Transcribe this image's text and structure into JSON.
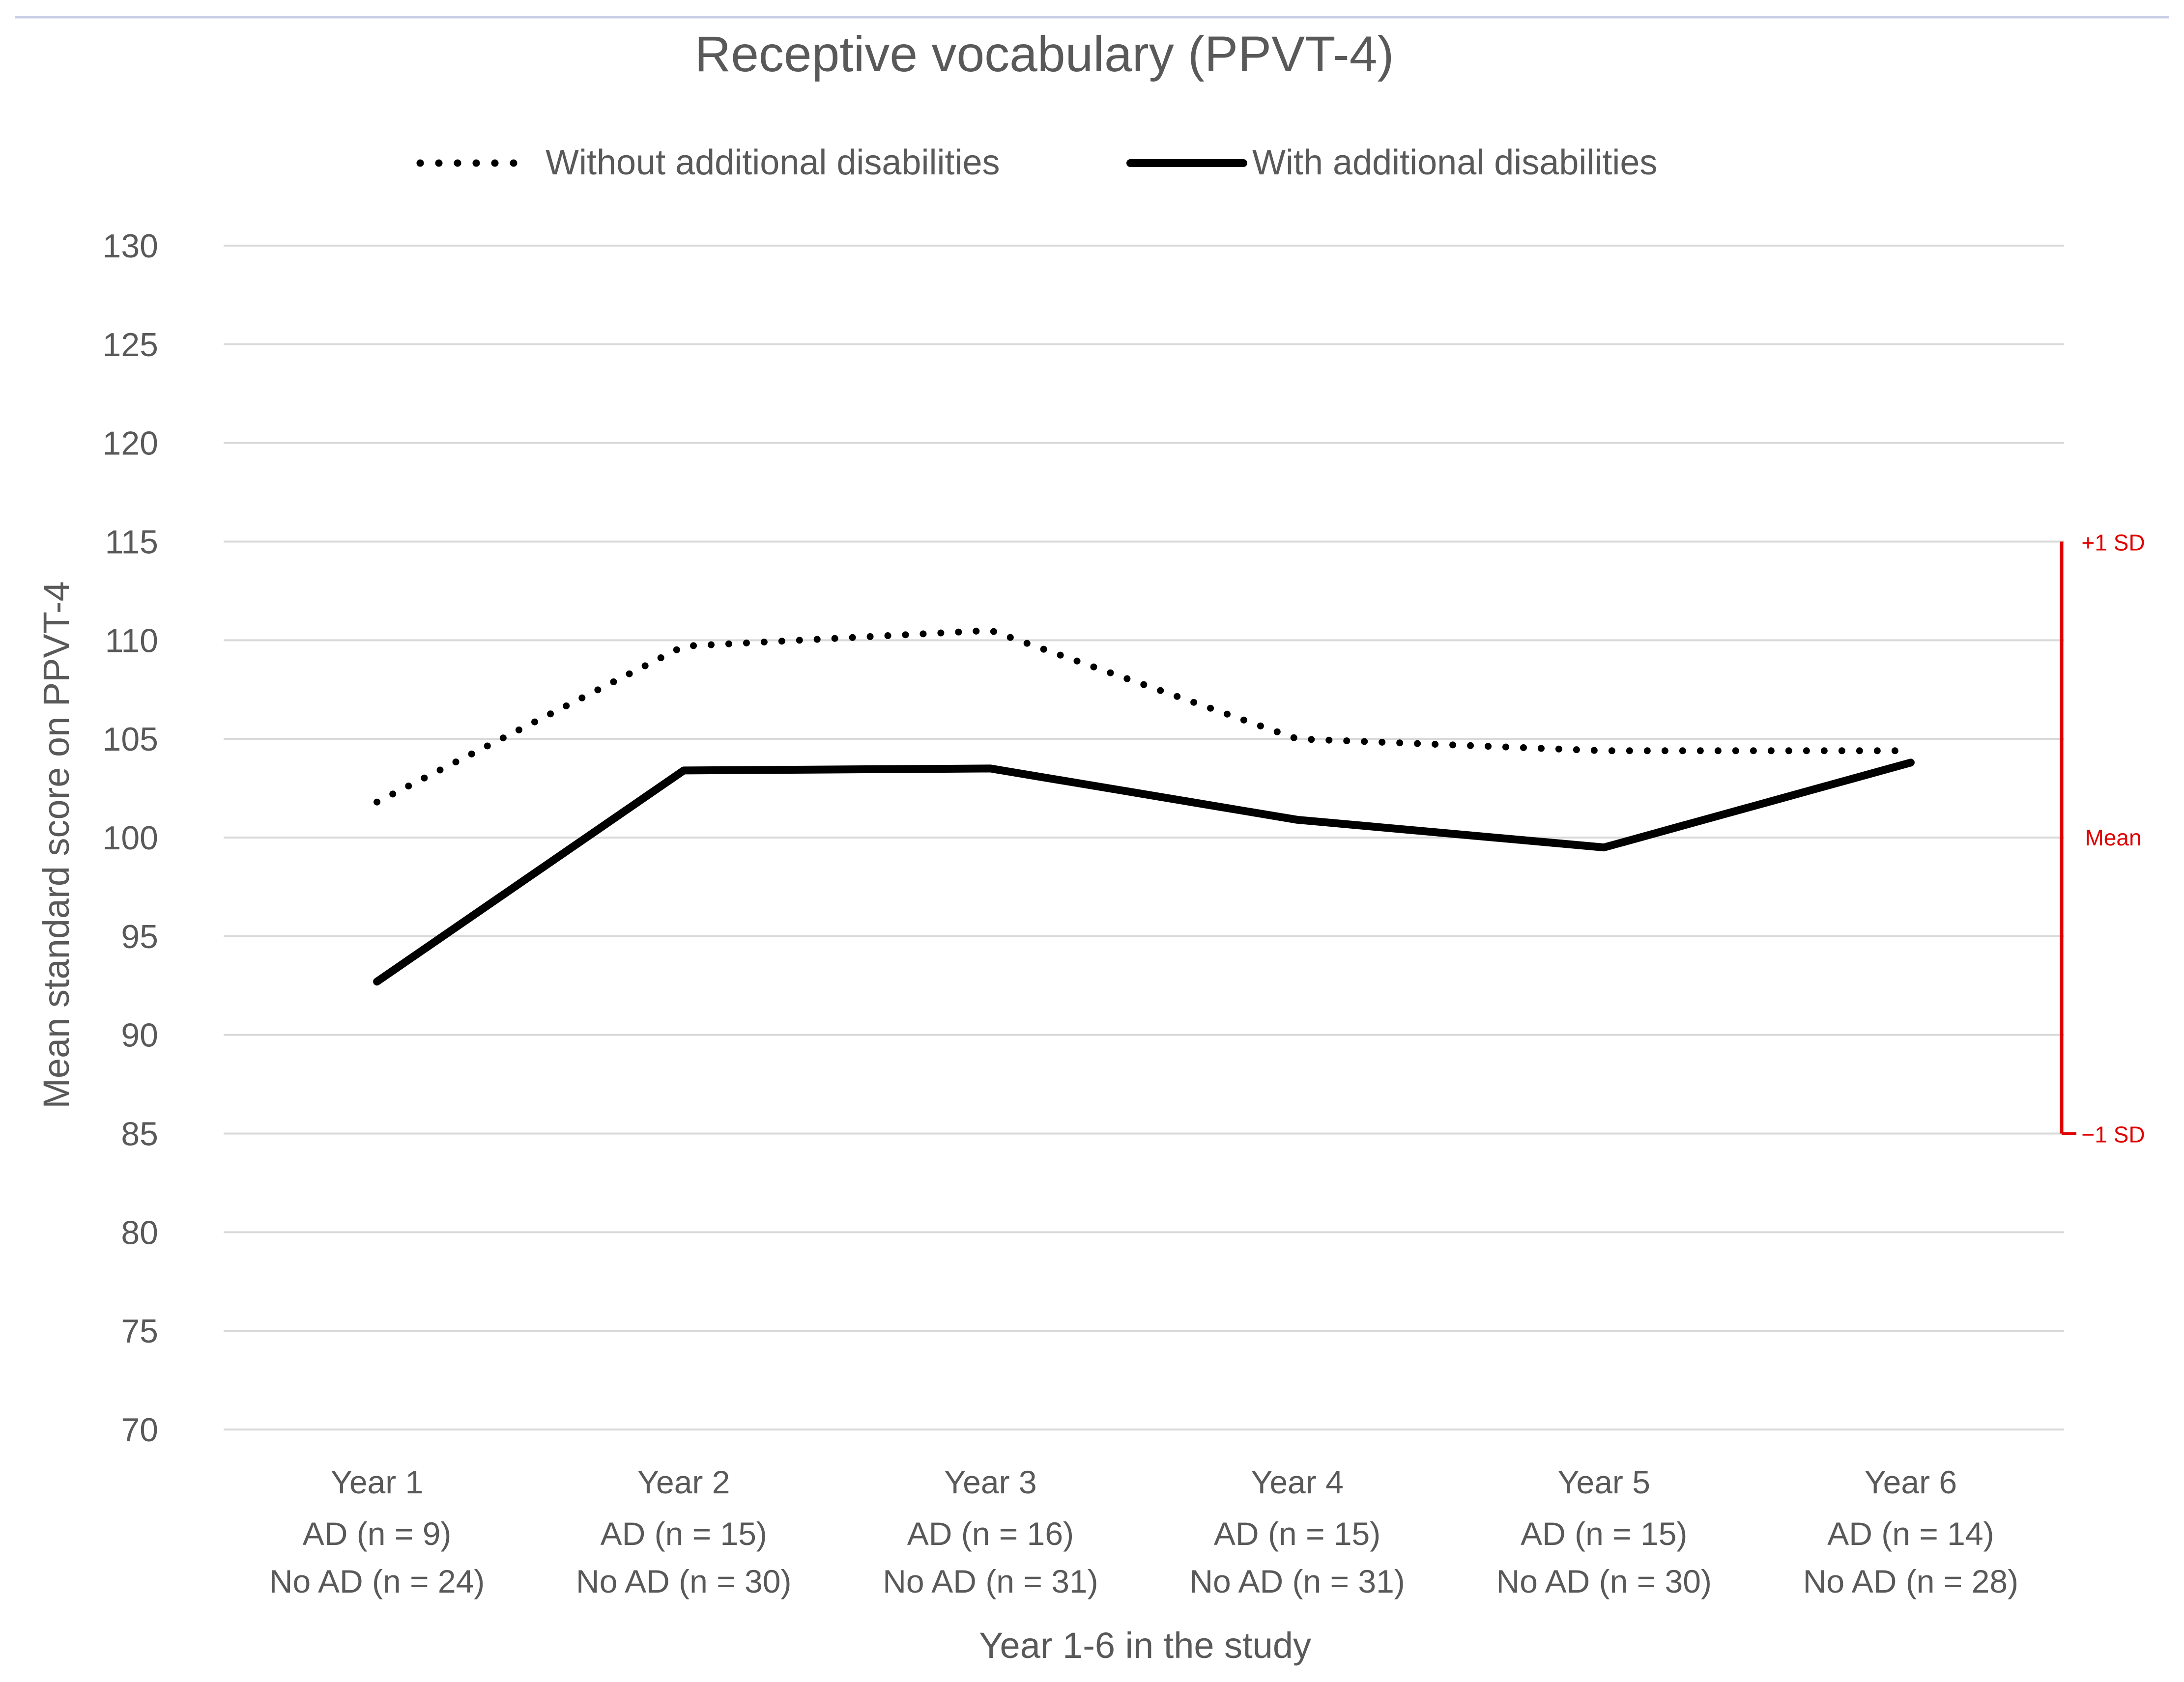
{
  "chart_data": {
    "type": "line",
    "title": "Receptive vocabulary (PPVT-4)",
    "xlabel": "Year 1-6 in the study",
    "ylabel": "Mean standard score on PPVT-4",
    "ylim": [
      70,
      130
    ],
    "yticks": [
      130,
      125,
      120,
      115,
      110,
      105,
      100,
      95,
      90,
      85,
      80,
      75,
      70
    ],
    "grid": true,
    "legend_position": "top",
    "categories": [
      {
        "year": "Year 1",
        "ad_label": "AD",
        "ad_n": "(n = 9)",
        "noad_label": "No AD",
        "noad_n": "(n = 24)"
      },
      {
        "year": "Year 2",
        "ad_label": "AD",
        "ad_n": "(n = 15)",
        "noad_label": "No AD",
        "noad_n": "(n = 30)"
      },
      {
        "year": "Year 3",
        "ad_label": "AD",
        "ad_n": "(n = 16)",
        "noad_label": "No AD",
        "noad_n": "(n = 31)"
      },
      {
        "year": "Year 4",
        "ad_label": "AD",
        "ad_n": "(n = 15)",
        "noad_label": "No AD",
        "noad_n": "(n = 31)"
      },
      {
        "year": "Year 5",
        "ad_label": "AD",
        "ad_n": "(n = 15)",
        "noad_label": "No AD",
        "noad_n": "(n = 30)"
      },
      {
        "year": "Year 6",
        "ad_label": "AD",
        "ad_n": "(n = 14)",
        "noad_label": "No AD",
        "noad_n": "(n = 28)"
      }
    ],
    "series": [
      {
        "name": "Without additional disabilities",
        "style": "dotted",
        "color": "#000000",
        "values": [
          101.8,
          109.7,
          110.5,
          105.0,
          104.4,
          104.4
        ]
      },
      {
        "name": "With additional disabilities",
        "style": "solid",
        "color": "#000000",
        "values": [
          92.7,
          103.4,
          103.5,
          100.9,
          99.5,
          103.8
        ]
      }
    ],
    "reference_bar": {
      "color": "#e00000",
      "from_value": 85,
      "to_value": 115,
      "labels": [
        {
          "text": "+1 SD",
          "value": 115
        },
        {
          "text": "Mean",
          "value": 100
        },
        {
          "text": "−1 SD",
          "value": 85
        }
      ]
    }
  }
}
